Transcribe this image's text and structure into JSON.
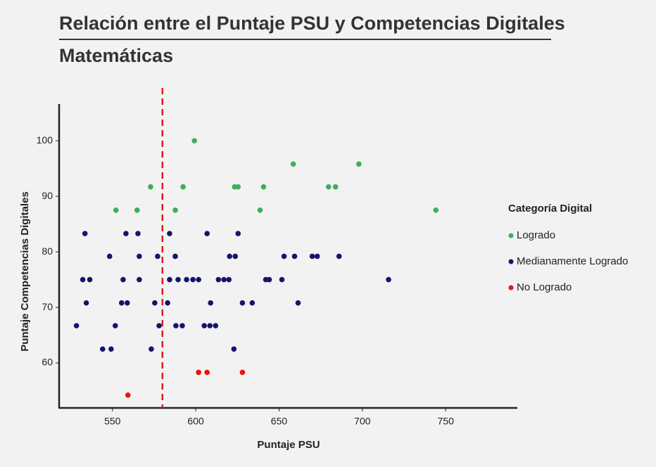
{
  "chart_data": {
    "type": "scatter",
    "title": "Relación entre el Puntaje PSU y Competencias Digitales",
    "subtitle": "Matemáticas",
    "x_label": "Puntaje PSU",
    "y_label": "Puntaje Competencias Digitales",
    "legend_title": "Categoría Digital",
    "legend_position": "right",
    "xlim": [
      518,
      793
    ],
    "ylim": [
      51.9,
      106.6
    ],
    "xticks": [
      550,
      600,
      650,
      700,
      750
    ],
    "yticks": [
      60,
      70,
      80,
      90,
      100
    ],
    "vline": {
      "value": 580,
      "color": "#e41a1c"
    },
    "series": [
      {
        "name": "Logrado",
        "color": "#3fae5a",
        "x": [
          599.2,
          658.5,
          697.9,
          572.9,
          592.4,
          623.3,
          625.4,
          640.7,
          679.7,
          683.9,
          552.1,
          564.8,
          587.7,
          638.6,
          744.1
        ],
        "values": [
          100,
          95.8,
          95.8,
          91.7,
          91.7,
          91.7,
          91.7,
          91.7,
          91.7,
          91.7,
          87.5,
          87.5,
          87.5,
          87.5,
          87.5
        ]
      },
      {
        "name": "Medianamente Logrado",
        "color": "#14146b",
        "x": [
          533.5,
          558.1,
          565.3,
          584.3,
          606.8,
          625.4,
          548.3,
          566.1,
          577.1,
          587.7,
          620.3,
          623.7,
          653,
          659.3,
          669.9,
          672.9,
          686,
          532.2,
          536.4,
          556.4,
          566.1,
          584.3,
          589.4,
          594.5,
          598.3,
          601.7,
          613.6,
          616.9,
          619.9,
          642,
          644.1,
          651.7,
          715.7,
          534.3,
          555.5,
          558.9,
          575.4,
          583.1,
          608.9,
          628,
          633.9,
          661.4,
          528.4,
          551.7,
          578,
          588.1,
          591.9,
          605.1,
          608.5,
          611.9,
          544.1,
          549.2,
          573.3,
          622.9
        ],
        "values": [
          83.3,
          83.3,
          83.3,
          83.3,
          83.3,
          83.3,
          79.2,
          79.2,
          79.2,
          79.2,
          79.2,
          79.2,
          79.2,
          79.2,
          79.2,
          79.2,
          79.2,
          75,
          75,
          75,
          75,
          75,
          75,
          75,
          75,
          75,
          75,
          75,
          75,
          75,
          75,
          75,
          75,
          70.8,
          70.8,
          70.8,
          70.8,
          70.8,
          70.8,
          70.8,
          70.8,
          70.8,
          66.7,
          66.7,
          66.7,
          66.7,
          66.7,
          66.7,
          66.7,
          66.7,
          62.5,
          62.5,
          62.5,
          62.5
        ]
      },
      {
        "name": "No Logrado",
        "color": "#ee1111",
        "x": [
          559.3,
          601.7,
          606.8,
          628
        ],
        "values": [
          54.2,
          58.3,
          58.3,
          58.3
        ]
      }
    ]
  }
}
